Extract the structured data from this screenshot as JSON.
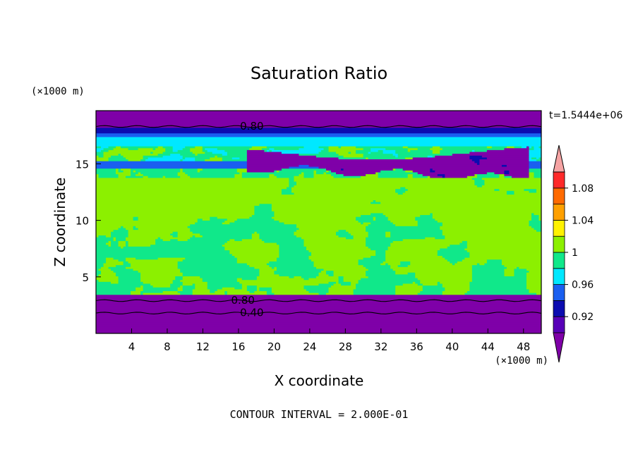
{
  "chart_data": {
    "type": "heatmap",
    "subtype": "filled-contour",
    "title": "Saturation Ratio",
    "xlabel": "X coordinate",
    "ylabel": "Z coordinate",
    "x_unit": "(×1000 m)",
    "y_unit": "(×1000 m)",
    "time_label": "t=1.5444e+06",
    "footer": "CONTOUR INTERVAL = 2.000E-01",
    "xlim": [
      0,
      50
    ],
    "ylim": [
      0,
      19.7
    ],
    "x_ticks": [
      4,
      8,
      12,
      16,
      20,
      24,
      28,
      32,
      36,
      40,
      44,
      48
    ],
    "y_ticks": [
      5,
      10,
      15
    ],
    "colorbar": {
      "ticks": [
        "0.92",
        "0.96",
        "1",
        "1.04",
        "1.08"
      ],
      "levels": [
        {
          "max": 0.9,
          "color": "#7f00a8"
        },
        {
          "max": 0.92,
          "color": "#5800b8"
        },
        {
          "max": 0.94,
          "color": "#0c0cb0"
        },
        {
          "max": 0.96,
          "color": "#1a5ff0"
        },
        {
          "max": 0.98,
          "color": "#00e8ff"
        },
        {
          "max": 1.0,
          "color": "#10e88a"
        },
        {
          "max": 1.02,
          "color": "#8cf000"
        },
        {
          "max": 1.04,
          "color": "#fff200"
        },
        {
          "max": 1.06,
          "color": "#ffa000"
        },
        {
          "max": 1.08,
          "color": "#ff6a00"
        },
        {
          "max": 1.1,
          "color": "#ff2a2a"
        },
        {
          "max": 9.99,
          "color": "#f5a3a3"
        }
      ]
    },
    "layers": [
      {
        "z_from": 0.0,
        "z_to": 1.8,
        "value": 0.3
      },
      {
        "z_from": 1.8,
        "z_to": 2.9,
        "value": 0.6
      },
      {
        "z_from": 2.9,
        "z_to": 3.4,
        "value": 0.85
      },
      {
        "z_from": 3.4,
        "z_to": 8.0,
        "value": 0.99,
        "note": "mixed with patches of 1.01"
      },
      {
        "z_from": 8.0,
        "z_to": 13.5,
        "value": 1.01,
        "note": "mixed with patches of 0.99"
      },
      {
        "z_from": 13.5,
        "z_to": 14.8,
        "value": 0.97
      },
      {
        "z_from": 14.8,
        "z_to": 15.8,
        "value": 0.88,
        "note": "dry slot x=18-48"
      },
      {
        "z_from": 15.8,
        "z_to": 17.5,
        "value": 0.97
      },
      {
        "z_from": 17.5,
        "z_to": 18.2,
        "value": 0.93
      },
      {
        "z_from": 18.2,
        "z_to": 19.7,
        "value": 0.8
      }
    ],
    "contour_labels": [
      {
        "text": "0.80",
        "x": 17.5,
        "z": 18.4
      },
      {
        "text": "0.80",
        "x": 16.5,
        "z": 3.0
      },
      {
        "text": "0.40",
        "x": 17.5,
        "z": 1.9
      }
    ]
  }
}
